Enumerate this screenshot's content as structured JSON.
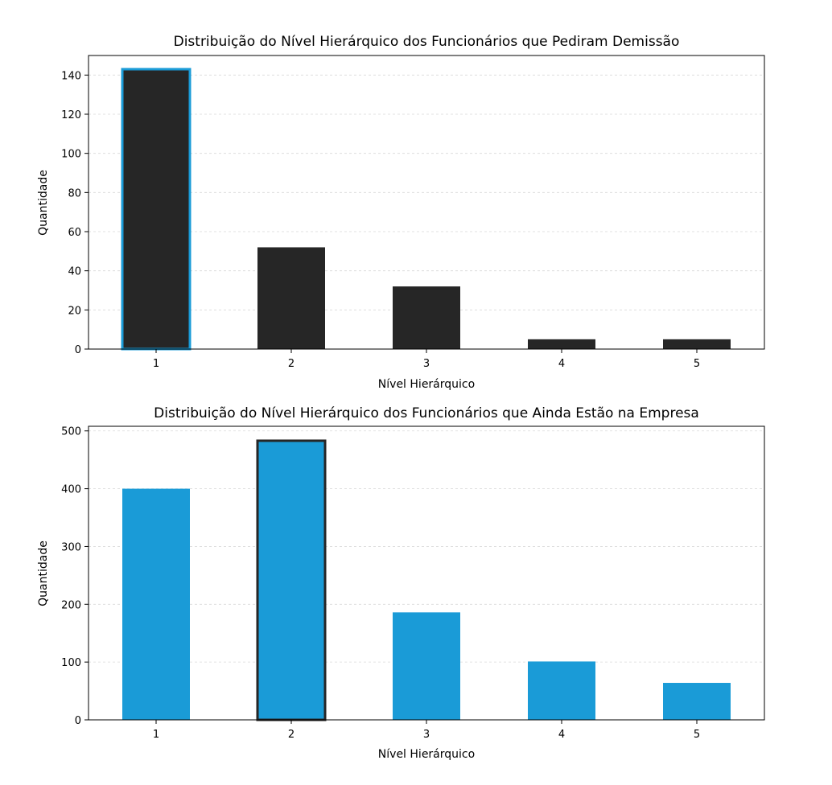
{
  "chart_data": [
    {
      "type": "bar",
      "title": "Distribuição do Nível Hierárquico dos Funcionários que Pediram Demissão",
      "xlabel": "Nível Hierárquico",
      "ylabel": "Quantidade",
      "categories": [
        "1",
        "2",
        "3",
        "4",
        "5"
      ],
      "values": [
        143,
        52,
        32,
        5,
        5
      ],
      "ylim": [
        0,
        150
      ],
      "yticks": [
        0,
        20,
        40,
        60,
        80,
        100,
        120,
        140
      ],
      "bar_color": "#262626",
      "highlight_index": 0,
      "highlight_edge_color": "#1a9bd7",
      "grid": "horizontal dashed"
    },
    {
      "type": "bar",
      "title": "Distribuição do Nível Hierárquico dos Funcionários que Ainda Estão na Empresa",
      "xlabel": "Nível Hierárquico",
      "ylabel": "Quantidade",
      "categories": [
        "1",
        "2",
        "3",
        "4",
        "5"
      ],
      "values": [
        400,
        483,
        186,
        101,
        64
      ],
      "ylim": [
        0,
        508
      ],
      "yticks": [
        0,
        100,
        200,
        300,
        400,
        500
      ],
      "bar_color": "#1a9bd7",
      "highlight_index": 1,
      "highlight_edge_color": "#262626",
      "grid": "horizontal dashed"
    }
  ]
}
